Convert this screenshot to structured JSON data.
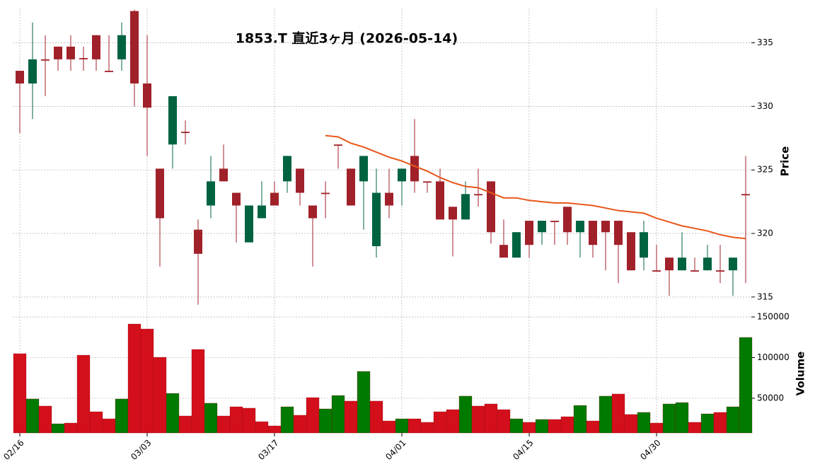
{
  "chart_data": {
    "type": "candlestick",
    "title": "1853.T  直近3ヶ月 (2026-05-14)",
    "categories": [
      "02/16",
      null,
      null,
      null,
      null,
      null,
      null,
      null,
      null,
      null,
      "03/03",
      null,
      null,
      null,
      null,
      null,
      null,
      null,
      null,
      null,
      "03/17",
      null,
      null,
      null,
      null,
      null,
      null,
      null,
      null,
      null,
      "04/01",
      null,
      null,
      null,
      null,
      null,
      null,
      null,
      null,
      null,
      "04/15",
      null,
      null,
      null,
      null,
      null,
      null,
      null,
      null,
      null,
      "04/30",
      null,
      null,
      null,
      null,
      null,
      null,
      null
    ],
    "open": [
      332.8,
      331.8,
      333.7,
      334.7,
      334.7,
      333.8,
      335.6,
      332.8,
      333.7,
      337.5,
      331.8,
      325.1,
      327,
      328,
      320.3,
      322.2,
      325.1,
      323.2,
      319.3,
      321.2,
      323.2,
      324.1,
      325.1,
      322.2,
      323.2,
      327,
      325.1,
      324.1,
      319,
      323.2,
      324.1,
      326.1,
      324.1,
      324.1,
      322.1,
      321.1,
      323.1,
      324.1,
      319.1,
      318.1,
      321,
      320.1,
      321,
      322.1,
      320.1,
      321,
      321,
      321,
      320.1,
      318.1,
      317.1,
      318.1,
      317.1,
      317.1,
      317.1,
      317.1,
      317.1,
      323.1
    ],
    "high": [
      332.8,
      336.6,
      335.6,
      334.7,
      335.6,
      334.7,
      335.6,
      335.6,
      336.6,
      337.6,
      335.6,
      325.1,
      330.8,
      328.9,
      321.1,
      326.1,
      327,
      323.2,
      322.2,
      324.1,
      324.1,
      326.1,
      325.1,
      322.2,
      324.1,
      327,
      325.1,
      326.1,
      325.1,
      325.1,
      325.1,
      329,
      324.1,
      325.1,
      322.1,
      324.1,
      325.1,
      324.1,
      321.1,
      320.1,
      321,
      321,
      321,
      322.1,
      321,
      321,
      321,
      321,
      320.1,
      321,
      319.1,
      318.1,
      320.1,
      318.1,
      319.1,
      319.1,
      318.1,
      326.1
    ],
    "low": [
      327.9,
      329,
      330.8,
      332.8,
      332.8,
      332.8,
      332.8,
      332.7,
      332.8,
      330,
      326.1,
      317.4,
      325.1,
      327,
      314.4,
      321.2,
      324.1,
      319.3,
      319.3,
      321.2,
      322.2,
      323.2,
      322.2,
      317.4,
      321.2,
      325.1,
      322.2,
      320.3,
      318.1,
      321.2,
      322.2,
      323.2,
      323.2,
      321.1,
      318.2,
      321.1,
      322.1,
      319.2,
      318.1,
      318.1,
      318.1,
      319.1,
      319.1,
      319.1,
      318.1,
      318.1,
      317.1,
      316.1,
      317.1,
      317.1,
      317,
      315.1,
      317.1,
      317,
      317.1,
      316.1,
      315.1,
      316.1
    ],
    "close": [
      331.8,
      333.7,
      333.6,
      333.7,
      333.7,
      333.7,
      333.7,
      332.7,
      335.6,
      331.8,
      329.9,
      321.2,
      330.8,
      327.9,
      318.4,
      324.1,
      324.1,
      322.2,
      322.2,
      322.2,
      322.2,
      326.1,
      323.2,
      321.2,
      323.1,
      326.9,
      322.2,
      326.1,
      323.2,
      322.2,
      325.1,
      324.1,
      324,
      321.1,
      321.1,
      323.1,
      323,
      320.1,
      318.1,
      320.1,
      319.1,
      321,
      320.9,
      320.1,
      321,
      319.1,
      320.1,
      319.1,
      317.1,
      320.1,
      317,
      317.1,
      318.1,
      317,
      318.1,
      317,
      318.1,
      323
    ],
    "up_color": "#006340",
    "down_color": "#a0212a",
    "ma": {
      "color": "#e8561a",
      "values": [
        null,
        null,
        null,
        null,
        null,
        null,
        null,
        null,
        null,
        null,
        null,
        null,
        null,
        null,
        null,
        null,
        null,
        null,
        null,
        null,
        null,
        null,
        null,
        null,
        327.7,
        327.6,
        327.1,
        326.8,
        326.4,
        326,
        325.7,
        325.3,
        324.9,
        324.4,
        324,
        323.7,
        323.6,
        323.2,
        322.8,
        322.8,
        322.6,
        322.5,
        322.4,
        322.4,
        322.3,
        322.2,
        322,
        321.8,
        321.7,
        321.6,
        321.2,
        320.9,
        320.6,
        320.4,
        320.2,
        319.9,
        319.7,
        319.6
      ]
    },
    "ylabel": "Price",
    "ylim": [
      313.6,
      337.7
    ],
    "yticks": [
      315,
      320,
      325,
      330,
      335
    ],
    "volume": {
      "label": "Volume",
      "values": [
        104800,
        49100,
        40400,
        18600,
        19500,
        103000,
        33400,
        24700,
        49100,
        141300,
        135200,
        100400,
        56000,
        28200,
        110000,
        43900,
        28200,
        39500,
        37800,
        21200,
        16000,
        39500,
        29100,
        50800,
        36900,
        53400,
        46500,
        83000,
        46500,
        22100,
        24700,
        24700,
        20400,
        33400,
        36000,
        52600,
        40400,
        43000,
        36000,
        24700,
        20400,
        23900,
        23900,
        27300,
        41200,
        22100,
        52600,
        55200,
        30000,
        32600,
        19500,
        43000,
        44700,
        20400,
        30800,
        32600,
        39500,
        124800
      ],
      "up_color": "#007a00",
      "down_color": "#d30f1b",
      "ylim": [
        7300,
        152600
      ],
      "yticks": [
        50000,
        100000,
        150000
      ]
    },
    "grid": true
  }
}
